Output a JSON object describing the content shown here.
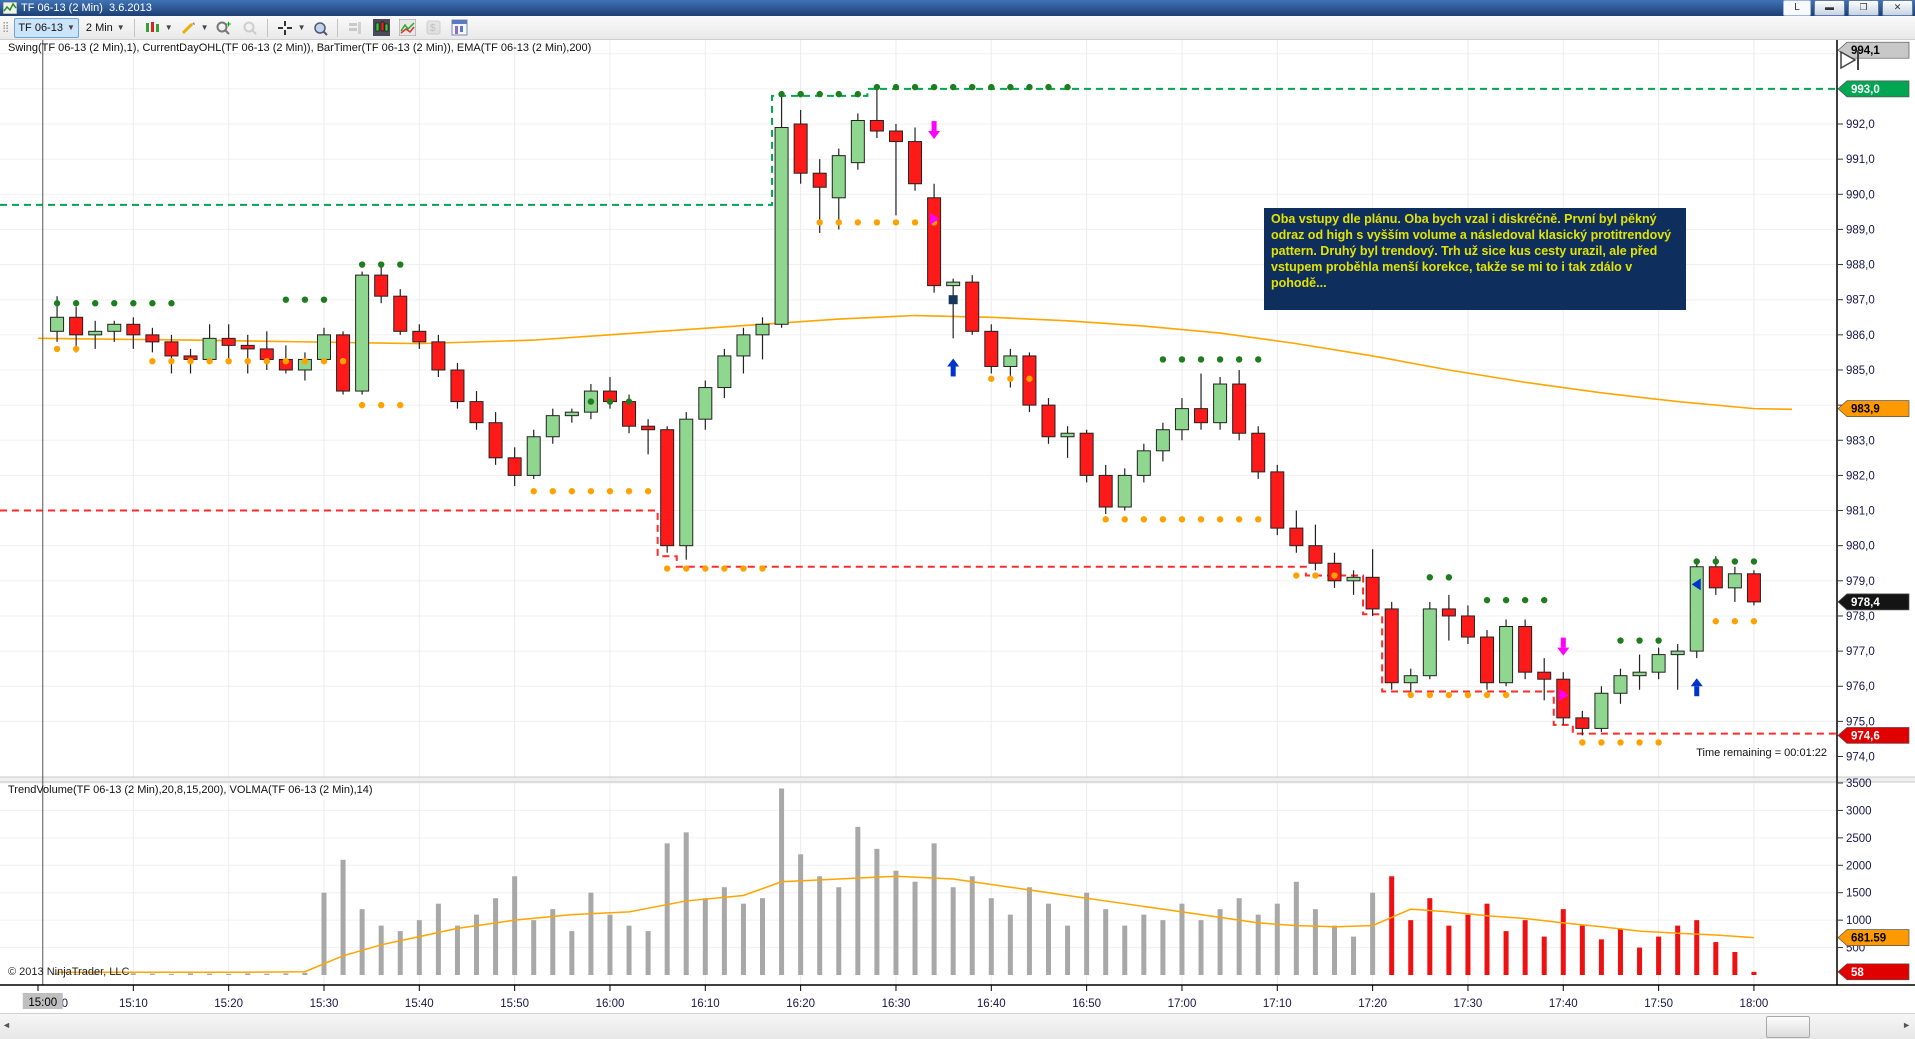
{
  "window": {
    "title": "TF 06-13 (2 Min)  3.6.2013",
    "link_button_label": "L"
  },
  "toolbar": {
    "instrument": "TF 06-13",
    "interval": "2 Min"
  },
  "main_panel": {
    "indicator_label": "Swing(TF 06-13 (2 Min),1), CurrentDayOHL(TF 06-13 (2 Min)), BarTimer(TF 06-13 (2 Min)), EMA(TF 06-13 (2 Min),200)",
    "bar_timer": "Time remaining = 00:01:22"
  },
  "volume_panel": {
    "indicator_label": "TrendVolume(TF 06-13 (2 Min),20,8,15,200), VOLMA(TF 06-13 (2 Min),14)"
  },
  "annotation": {
    "text": "Oba vstupy dle plánu. Oba bych vzal i diskréčně. První byl pěkný odraz od high s vyšším volume a následoval klasický protitrendový pattern. Druhý byl trendový. Trh už sice kus cesty urazil, ale před vstupem proběhla menší korekce, takže se mi to i tak zdálo v pohodě...",
    "bg": "#0e2f5e",
    "fg": "#e3e300"
  },
  "footer": {
    "copyright": "© 2013 NinjaTrader, LLC"
  },
  "chart_data": {
    "type": "candlestick+volume",
    "title": "TF 06-13 (2 Min) 3.6.2013",
    "interval_minutes": 2,
    "colors": {
      "up": "#8fd68f",
      "down": "#ff1a1a",
      "wick": "#222222",
      "ema": "#ffa500",
      "volma": "#ffa500",
      "vol_gray": "#a8a8a8",
      "vol_red": "#ee1111",
      "day_high_dash": "#00a651",
      "day_low_dash": "#ff2a2a",
      "swing_high_dot": "#1e7d1e",
      "swing_low_dot": "#ffa200"
    },
    "time_ticks": [
      {
        "label": "15:00",
        "min": 0
      },
      {
        "label": "15:10",
        "min": 10
      },
      {
        "label": "15:20",
        "min": 20
      },
      {
        "label": "15:30",
        "min": 30
      },
      {
        "label": "15:40",
        "min": 40
      },
      {
        "label": "15:50",
        "min": 50
      },
      {
        "label": "16:00",
        "min": 60
      },
      {
        "label": "16:10",
        "min": 70
      },
      {
        "label": "16:20",
        "min": 80
      },
      {
        "label": "16:30",
        "min": 90
      },
      {
        "label": "16:40",
        "min": 100
      },
      {
        "label": "16:50",
        "min": 110
      },
      {
        "label": "17:00",
        "min": 120
      },
      {
        "label": "17:10",
        "min": 130
      },
      {
        "label": "17:20",
        "min": 140
      },
      {
        "label": "17:30",
        "min": 150
      },
      {
        "label": "17:40",
        "min": 160
      },
      {
        "label": "17:50",
        "min": 170
      },
      {
        "label": "18:00",
        "min": 180
      }
    ],
    "price_ticks": [
      {
        "v": 992,
        "label": "992,0"
      },
      {
        "v": 991,
        "label": "991,0"
      },
      {
        "v": 990,
        "label": "990,0"
      },
      {
        "v": 989,
        "label": "989,0"
      },
      {
        "v": 988,
        "label": "988,0"
      },
      {
        "v": 987,
        "label": "987,0"
      },
      {
        "v": 986,
        "label": "986,0"
      },
      {
        "v": 985,
        "label": "985,0"
      },
      {
        "v": 984,
        "label": "984,0"
      },
      {
        "v": 983,
        "label": "983,0"
      },
      {
        "v": 982,
        "label": "982,0"
      },
      {
        "v": 981,
        "label": "981,0"
      },
      {
        "v": 980,
        "label": "980,0"
      },
      {
        "v": 979,
        "label": "979,0"
      },
      {
        "v": 978,
        "label": "978,0"
      },
      {
        "v": 977,
        "label": "977,0"
      },
      {
        "v": 976,
        "label": "976,0"
      },
      {
        "v": 975,
        "label": "975,0"
      },
      {
        "v": 974,
        "label": "974,0"
      }
    ],
    "volume_ticks": [
      {
        "v": 3500,
        "label": "3500"
      },
      {
        "v": 3000,
        "label": "3000"
      },
      {
        "v": 2500,
        "label": "2500"
      },
      {
        "v": 2000,
        "label": "2000"
      },
      {
        "v": 1500,
        "label": "1500"
      },
      {
        "v": 1000,
        "label": "1000"
      },
      {
        "v": 500,
        "label": "500"
      }
    ],
    "axis_price_markers": [
      {
        "label": "994,1",
        "price": 994.1,
        "bg": "#c8c8c8",
        "fg": "#000000"
      },
      {
        "label": "993,0",
        "price": 993.0,
        "bg": "#00a651",
        "fg": "#ffffff"
      },
      {
        "label": "983,9",
        "price": 983.9,
        "bg": "#ff9900",
        "fg": "#000000"
      },
      {
        "label": "978,4",
        "price": 978.4,
        "bg": "#141414",
        "fg": "#ffffff"
      },
      {
        "label": "974,6",
        "price": 974.6,
        "bg": "#e00000",
        "fg": "#ffffff"
      }
    ],
    "axis_volume_markers": [
      {
        "label": "681.59",
        "value": 681.59,
        "bg": "#ff9900",
        "fg": "#000000"
      },
      {
        "label": "58",
        "value": 58,
        "bg": "#e00000",
        "fg": "#ffffff"
      }
    ],
    "crosshair": {
      "x_min": 0.5,
      "time_label": "15:00",
      "extra_label": "0"
    },
    "candles": [
      [
        986.1,
        987.1,
        985.8,
        986.5
      ],
      [
        986.5,
        986.8,
        985.5,
        986.0
      ],
      [
        986.0,
        986.4,
        985.6,
        986.1
      ],
      [
        986.1,
        986.4,
        985.8,
        986.3
      ],
      [
        986.3,
        986.5,
        985.6,
        986.0
      ],
      [
        986.0,
        986.2,
        985.5,
        985.8
      ],
      [
        985.8,
        986.0,
        984.9,
        985.4
      ],
      [
        985.4,
        985.6,
        984.9,
        985.3
      ],
      [
        985.3,
        986.3,
        985.2,
        985.9
      ],
      [
        985.9,
        986.3,
        985.3,
        985.7
      ],
      [
        985.7,
        986.0,
        984.9,
        985.6
      ],
      [
        985.6,
        986.1,
        985.0,
        985.3
      ],
      [
        985.3,
        985.7,
        984.9,
        985.0
      ],
      [
        985.0,
        985.5,
        984.7,
        985.3
      ],
      [
        985.3,
        986.2,
        985.2,
        986.0
      ],
      [
        986.0,
        986.1,
        984.3,
        984.4
      ],
      [
        984.4,
        987.8,
        984.3,
        987.7
      ],
      [
        987.7,
        988.0,
        986.9,
        987.1
      ],
      [
        987.1,
        987.3,
        986.0,
        986.1
      ],
      [
        986.1,
        986.3,
        985.6,
        985.8
      ],
      [
        985.8,
        986.0,
        984.8,
        985.0
      ],
      [
        985.0,
        985.2,
        983.9,
        984.1
      ],
      [
        984.1,
        984.4,
        983.3,
        983.5
      ],
      [
        983.5,
        983.8,
        982.3,
        982.5
      ],
      [
        982.5,
        982.8,
        981.7,
        982.0
      ],
      [
        982.0,
        983.3,
        981.9,
        983.1
      ],
      [
        983.1,
        983.9,
        982.9,
        983.7
      ],
      [
        983.7,
        983.9,
        983.5,
        983.8
      ],
      [
        983.8,
        984.6,
        983.6,
        984.4
      ],
      [
        984.4,
        984.8,
        983.9,
        984.1
      ],
      [
        984.1,
        984.3,
        983.2,
        983.4
      ],
      [
        983.4,
        983.6,
        982.6,
        983.3
      ],
      [
        983.3,
        983.4,
        979.8,
        980.0
      ],
      [
        980.0,
        983.8,
        979.6,
        983.6
      ],
      [
        983.6,
        984.7,
        983.3,
        984.5
      ],
      [
        984.5,
        985.6,
        984.2,
        985.4
      ],
      [
        985.4,
        986.2,
        984.9,
        986.0
      ],
      [
        986.0,
        986.5,
        985.3,
        986.3
      ],
      [
        986.3,
        992.8,
        986.2,
        991.9
      ],
      [
        992.0,
        992.4,
        990.3,
        990.6
      ],
      [
        990.6,
        991.0,
        988.9,
        990.2
      ],
      [
        989.9,
        991.3,
        989.0,
        991.1
      ],
      [
        990.9,
        992.3,
        990.7,
        992.1
      ],
      [
        992.1,
        993.0,
        991.6,
        991.8
      ],
      [
        991.8,
        992.0,
        989.4,
        991.5
      ],
      [
        991.5,
        991.9,
        990.1,
        990.3
      ],
      [
        989.9,
        990.3,
        987.2,
        987.4
      ],
      [
        987.4,
        987.6,
        985.9,
        987.5
      ],
      [
        987.5,
        987.7,
        986.0,
        986.1
      ],
      [
        986.1,
        986.3,
        984.9,
        985.1
      ],
      [
        985.1,
        985.6,
        984.5,
        985.4
      ],
      [
        985.4,
        985.5,
        983.8,
        984.0
      ],
      [
        984.0,
        984.2,
        982.9,
        983.1
      ],
      [
        983.1,
        983.4,
        982.5,
        983.2
      ],
      [
        983.2,
        983.3,
        981.8,
        982.0
      ],
      [
        982.0,
        982.3,
        980.9,
        981.1
      ],
      [
        981.1,
        982.2,
        981.0,
        982.0
      ],
      [
        982.0,
        982.9,
        981.8,
        982.7
      ],
      [
        982.7,
        983.5,
        982.4,
        983.3
      ],
      [
        983.3,
        984.2,
        983.0,
        983.9
      ],
      [
        983.9,
        984.9,
        983.3,
        983.5
      ],
      [
        983.5,
        984.8,
        983.3,
        984.6
      ],
      [
        984.6,
        985.0,
        983.0,
        983.2
      ],
      [
        983.2,
        983.4,
        981.9,
        982.1
      ],
      [
        982.1,
        982.3,
        980.3,
        980.5
      ],
      [
        980.5,
        981.0,
        979.8,
        980.0
      ],
      [
        980.0,
        980.6,
        979.3,
        979.5
      ],
      [
        979.5,
        979.8,
        978.8,
        979.0
      ],
      [
        979.0,
        979.3,
        978.6,
        979.1
      ],
      [
        979.1,
        979.9,
        978.0,
        978.2
      ],
      [
        978.2,
        978.4,
        975.9,
        976.1
      ],
      [
        976.1,
        976.5,
        975.8,
        976.3
      ],
      [
        976.3,
        978.4,
        976.2,
        978.2
      ],
      [
        978.2,
        978.6,
        977.3,
        978.0
      ],
      [
        978.0,
        978.3,
        977.2,
        977.4
      ],
      [
        977.4,
        977.6,
        975.9,
        976.1
      ],
      [
        976.1,
        977.9,
        976.0,
        977.7
      ],
      [
        977.7,
        977.9,
        976.2,
        976.4
      ],
      [
        976.4,
        976.8,
        975.6,
        976.2
      ],
      [
        976.2,
        976.4,
        974.9,
        975.1
      ],
      [
        975.1,
        975.3,
        974.6,
        974.8
      ],
      [
        974.8,
        976.0,
        974.7,
        975.8
      ],
      [
        975.8,
        976.5,
        975.5,
        976.3
      ],
      [
        976.3,
        976.9,
        975.9,
        976.4
      ],
      [
        976.4,
        977.1,
        976.2,
        976.9
      ],
      [
        976.9,
        977.2,
        975.9,
        977.0
      ],
      [
        977.0,
        979.5,
        976.8,
        979.4
      ],
      [
        979.4,
        979.7,
        978.6,
        978.8
      ],
      [
        978.8,
        979.4,
        978.4,
        979.2
      ],
      [
        979.2,
        979.3,
        978.3,
        978.4
      ]
    ],
    "volumes": [
      30,
      20,
      25,
      20,
      30,
      25,
      20,
      30,
      25,
      20,
      30,
      25,
      30,
      40,
      1500,
      2100,
      1200,
      900,
      800,
      1000,
      1300,
      900,
      1100,
      1400,
      1800,
      1000,
      1200,
      800,
      1500,
      1100,
      900,
      800,
      2400,
      2600,
      1400,
      1600,
      1300,
      1400,
      3400,
      2200,
      1800,
      1600,
      2700,
      2300,
      1900,
      1700,
      2400,
      1600,
      1800,
      1400,
      1100,
      1600,
      1300,
      900,
      1500,
      1200,
      900,
      1100,
      1000,
      1300,
      1000,
      1200,
      1400,
      1100,
      1300,
      1700,
      1200,
      900,
      700,
      1500,
      1800,
      1000,
      1400,
      900,
      1100,
      1300,
      800,
      1000,
      700,
      1200,
      900,
      650,
      850,
      500,
      700,
      900,
      1000,
      600,
      420,
      58
    ],
    "volume_red_from_bar": 71,
    "ema200": [
      [
        0,
        985.9
      ],
      [
        8,
        985.85
      ],
      [
        14,
        985.8
      ],
      [
        20,
        985.75
      ],
      [
        26,
        985.85
      ],
      [
        30,
        986.0
      ],
      [
        34,
        986.15
      ],
      [
        38,
        986.3
      ],
      [
        42,
        986.45
      ],
      [
        46,
        986.55
      ],
      [
        50,
        986.5
      ],
      [
        54,
        986.4
      ],
      [
        58,
        986.25
      ],
      [
        62,
        986.05
      ],
      [
        66,
        985.75
      ],
      [
        70,
        985.4
      ],
      [
        74,
        985.0
      ],
      [
        78,
        984.65
      ],
      [
        82,
        984.35
      ],
      [
        86,
        984.1
      ],
      [
        90,
        983.9
      ],
      [
        92,
        983.88
      ]
    ],
    "volma14": [
      [
        1,
        50
      ],
      [
        10,
        50
      ],
      [
        14,
        60
      ],
      [
        16,
        350
      ],
      [
        18,
        550
      ],
      [
        20,
        700
      ],
      [
        22,
        850
      ],
      [
        25,
        1000
      ],
      [
        28,
        1100
      ],
      [
        31,
        1150
      ],
      [
        34,
        1350
      ],
      [
        37,
        1450
      ],
      [
        39,
        1700
      ],
      [
        42,
        1750
      ],
      [
        45,
        1800
      ],
      [
        48,
        1750
      ],
      [
        51,
        1600
      ],
      [
        54,
        1450
      ],
      [
        57,
        1300
      ],
      [
        60,
        1150
      ],
      [
        62,
        1050
      ],
      [
        64,
        950
      ],
      [
        66,
        900
      ],
      [
        68,
        880
      ],
      [
        70,
        900
      ],
      [
        72,
        1200
      ],
      [
        74,
        1150
      ],
      [
        76,
        1080
      ],
      [
        78,
        1030
      ],
      [
        80,
        950
      ],
      [
        82,
        880
      ],
      [
        84,
        800
      ],
      [
        86,
        760
      ],
      [
        88,
        730
      ],
      [
        90,
        682
      ]
    ],
    "day_high_segments": [
      [
        0,
        38.5,
        989.7
      ],
      [
        38.5,
        43.5,
        992.8
      ],
      [
        43.5,
        94.3,
        993.0
      ]
    ],
    "day_low_segments": [
      [
        0,
        32.5,
        981.0
      ],
      [
        32.5,
        33.5,
        979.7
      ],
      [
        33.5,
        66.5,
        979.4
      ],
      [
        66.5,
        69.5,
        979.15
      ],
      [
        69.5,
        70.5,
        978.05
      ],
      [
        70.5,
        79.5,
        975.85
      ],
      [
        79.5,
        80.5,
        974.9
      ],
      [
        80.5,
        94.3,
        974.65
      ]
    ],
    "swing_high_dots": [
      [
        1,
        7,
        986.9
      ],
      [
        13,
        15,
        987.0
      ],
      [
        17,
        19,
        988.0
      ],
      [
        29,
        31,
        984.1
      ],
      [
        39,
        43,
        992.85
      ],
      [
        44,
        54,
        993.05
      ],
      [
        59,
        64,
        985.3
      ],
      [
        73,
        74,
        979.1
      ],
      [
        76,
        79,
        978.45
      ],
      [
        83,
        85,
        977.3
      ],
      [
        87,
        90,
        979.55
      ]
    ],
    "swing_low_dots": [
      [
        1,
        2,
        985.6
      ],
      [
        6,
        16,
        985.25
      ],
      [
        17,
        19,
        984.0
      ],
      [
        26,
        32,
        981.55
      ],
      [
        33,
        38,
        979.35
      ],
      [
        41,
        47,
        989.2
      ],
      [
        50,
        52,
        984.75
      ],
      [
        56,
        64,
        980.75
      ],
      [
        66,
        68,
        979.15
      ],
      [
        72,
        77,
        975.75
      ],
      [
        81,
        85,
        974.4
      ],
      [
        88,
        90,
        977.85
      ]
    ],
    "trade_markers": [
      {
        "bar": 47,
        "price": 991.6,
        "type": "arrow-down",
        "color": "#ff00ff"
      },
      {
        "bar": 47,
        "price": 989.3,
        "type": "triangle-right",
        "color": "#ff00ff"
      },
      {
        "bar": 48,
        "price": 987.0,
        "type": "square",
        "color": "#16365c"
      },
      {
        "bar": 48,
        "price": 985.3,
        "type": "arrow-up",
        "color": "#0033cc"
      },
      {
        "bar": 80,
        "price": 976.9,
        "type": "arrow-down",
        "color": "#ff00ff"
      },
      {
        "bar": 80,
        "price": 975.75,
        "type": "triangle-right",
        "color": "#ff00ff"
      },
      {
        "bar": 87,
        "price": 976.2,
        "type": "arrow-up",
        "color": "#0033cc"
      },
      {
        "bar": 87,
        "price": 978.9,
        "type": "triangle-left",
        "color": "#0033cc"
      }
    ]
  }
}
